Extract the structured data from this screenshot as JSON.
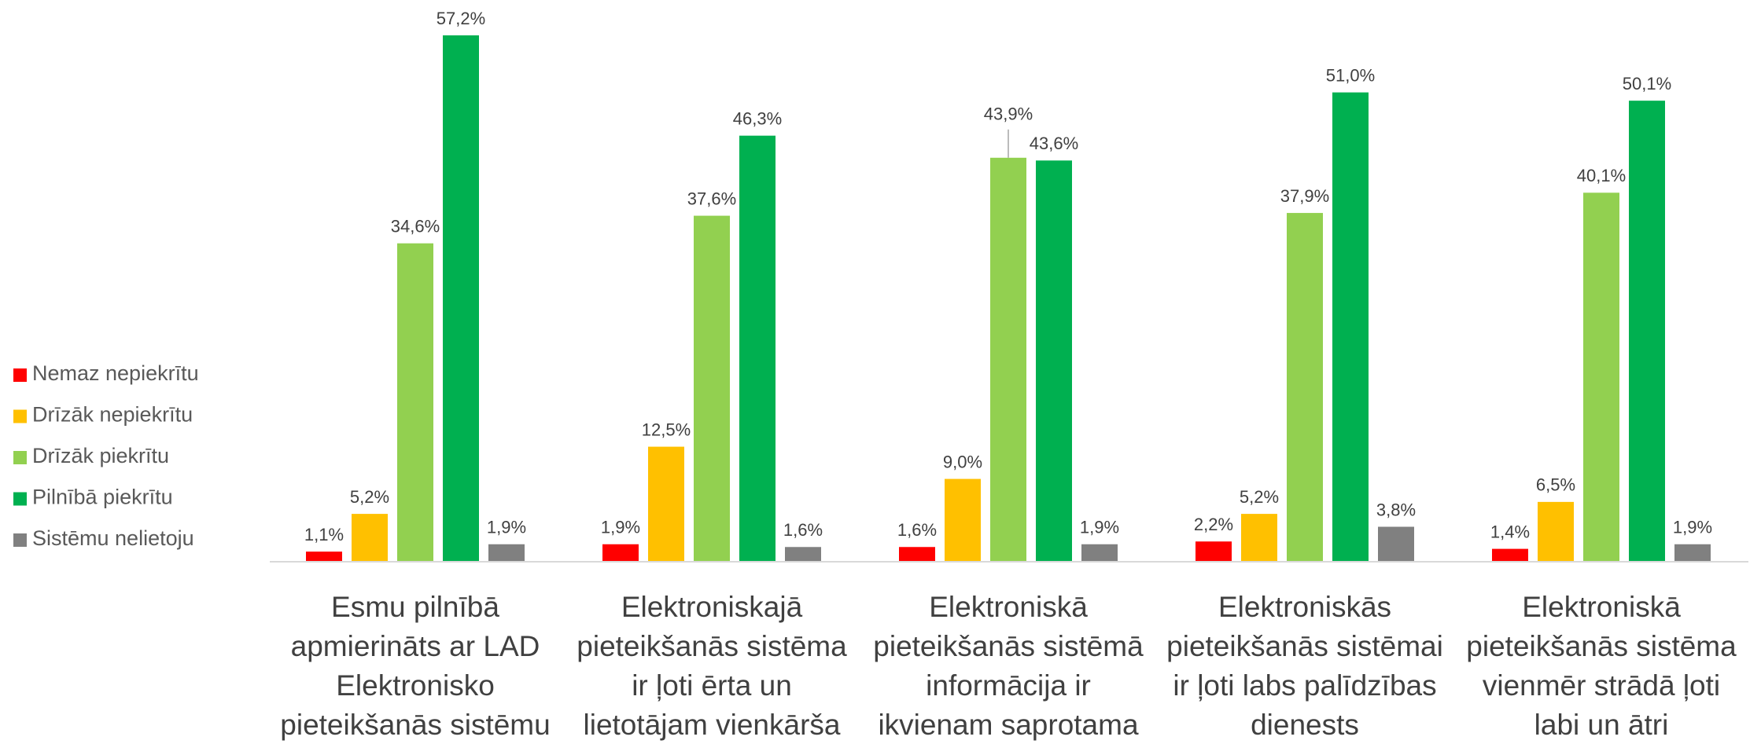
{
  "chart_data": {
    "type": "bar",
    "categories": [
      "Esmu pilnībā\napmierināts ar LAD\nElektronisko\npieteikšanās sistēmu",
      "Elektroniskajā\npieteikšanās sistēma\nir ļoti ērta un\nlietotājam vienkārša",
      "Elektroniskā\npieteikšanās sistēmā\ninformācija ir\nikvienam saprotama",
      "Elektroniskās\npieteikšanās sistēmai\nir ļoti labs palīdzības\ndienests",
      "Elektroniskā\npieteikšanās sistēma\nvienmēr strādā ļoti\nlabi un ātri"
    ],
    "series": [
      {
        "name": "Nemaz nepiekrītu",
        "color": "#ff0000",
        "values": [
          1.1,
          1.9,
          1.6,
          2.2,
          1.4
        ],
        "value_labels": [
          "1,1%",
          "1,9%",
          "1,6%",
          "2,2%",
          "1,4%"
        ]
      },
      {
        "name": "Drīzāk nepiekrītu",
        "color": "#ffc000",
        "values": [
          5.2,
          12.5,
          9.0,
          5.2,
          6.5
        ],
        "value_labels": [
          "5,2%",
          "12,5%",
          "9,0%",
          "5,2%",
          "6,5%"
        ]
      },
      {
        "name": "Drīzāk piekrītu",
        "color": "#92d050",
        "values": [
          34.6,
          37.6,
          43.9,
          37.9,
          40.1
        ],
        "value_labels": [
          "34,6%",
          "37,6%",
          "43,9%",
          "37,9%",
          "40,1%"
        ]
      },
      {
        "name": "Pilnībā piekrītu",
        "color": "#00b050",
        "values": [
          57.2,
          46.3,
          43.6,
          51.0,
          50.1
        ],
        "value_labels": [
          "57,2%",
          "46,3%",
          "43,6%",
          "51,0%",
          "50,1%"
        ]
      },
      {
        "name": "Sistēmu nelietoju",
        "color": "#808080",
        "values": [
          1.9,
          1.6,
          1.9,
          3.8,
          1.9
        ],
        "value_labels": [
          "1,9%",
          "1,6%",
          "1,9%",
          "3,8%",
          "1,9%"
        ]
      }
    ],
    "legend": "left"
  }
}
